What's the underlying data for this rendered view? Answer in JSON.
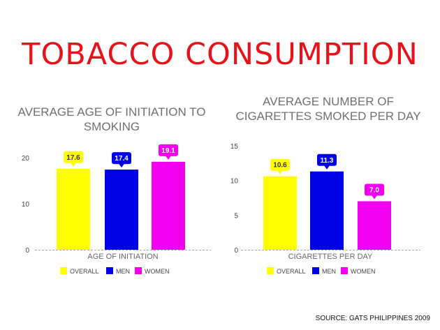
{
  "title": "TOBACCO CONSUMPTION",
  "source": "SOURCE: GATS PHILIPPINES 2009",
  "colors": {
    "title": "#e8121b",
    "overall": "#ffff00",
    "men": "#0000e6",
    "women": "#f000ef"
  },
  "chart_data": [
    {
      "type": "bar",
      "title": "AVERAGE AGE OF INITIATION TO SMOKING",
      "xlabel": "AGE OF INITIATION",
      "ylabel": "",
      "categories": [
        "OVERALL",
        "MEN",
        "WOMEN"
      ],
      "values": [
        17.6,
        17.4,
        19.1
      ],
      "value_labels": [
        "17.6",
        "17.4",
        "19.1"
      ],
      "yticks": [
        0,
        10,
        20
      ],
      "ylim": [
        0,
        26.8
      ],
      "legend": [
        "OVERALL",
        "MEN",
        "WOMEN"
      ],
      "legend_position": "bottom",
      "grid": false
    },
    {
      "type": "bar",
      "title": "AVERAGE NUMBER OF CIGARETTES SMOKED PER DAY",
      "xlabel": "CIGARETTES PER DAY",
      "ylabel": "",
      "categories": [
        "OVERALL",
        "MEN",
        "WOMEN"
      ],
      "values": [
        10.6,
        11.3,
        7.0
      ],
      "value_labels": [
        "10.6",
        "11.3",
        "7.0"
      ],
      "yticks": [
        0,
        5,
        10,
        15
      ],
      "ylim": [
        0,
        15
      ],
      "legend": [
        "OVERALL",
        "MEN",
        "WOMEN"
      ],
      "legend_position": "bottom",
      "grid": false
    }
  ]
}
